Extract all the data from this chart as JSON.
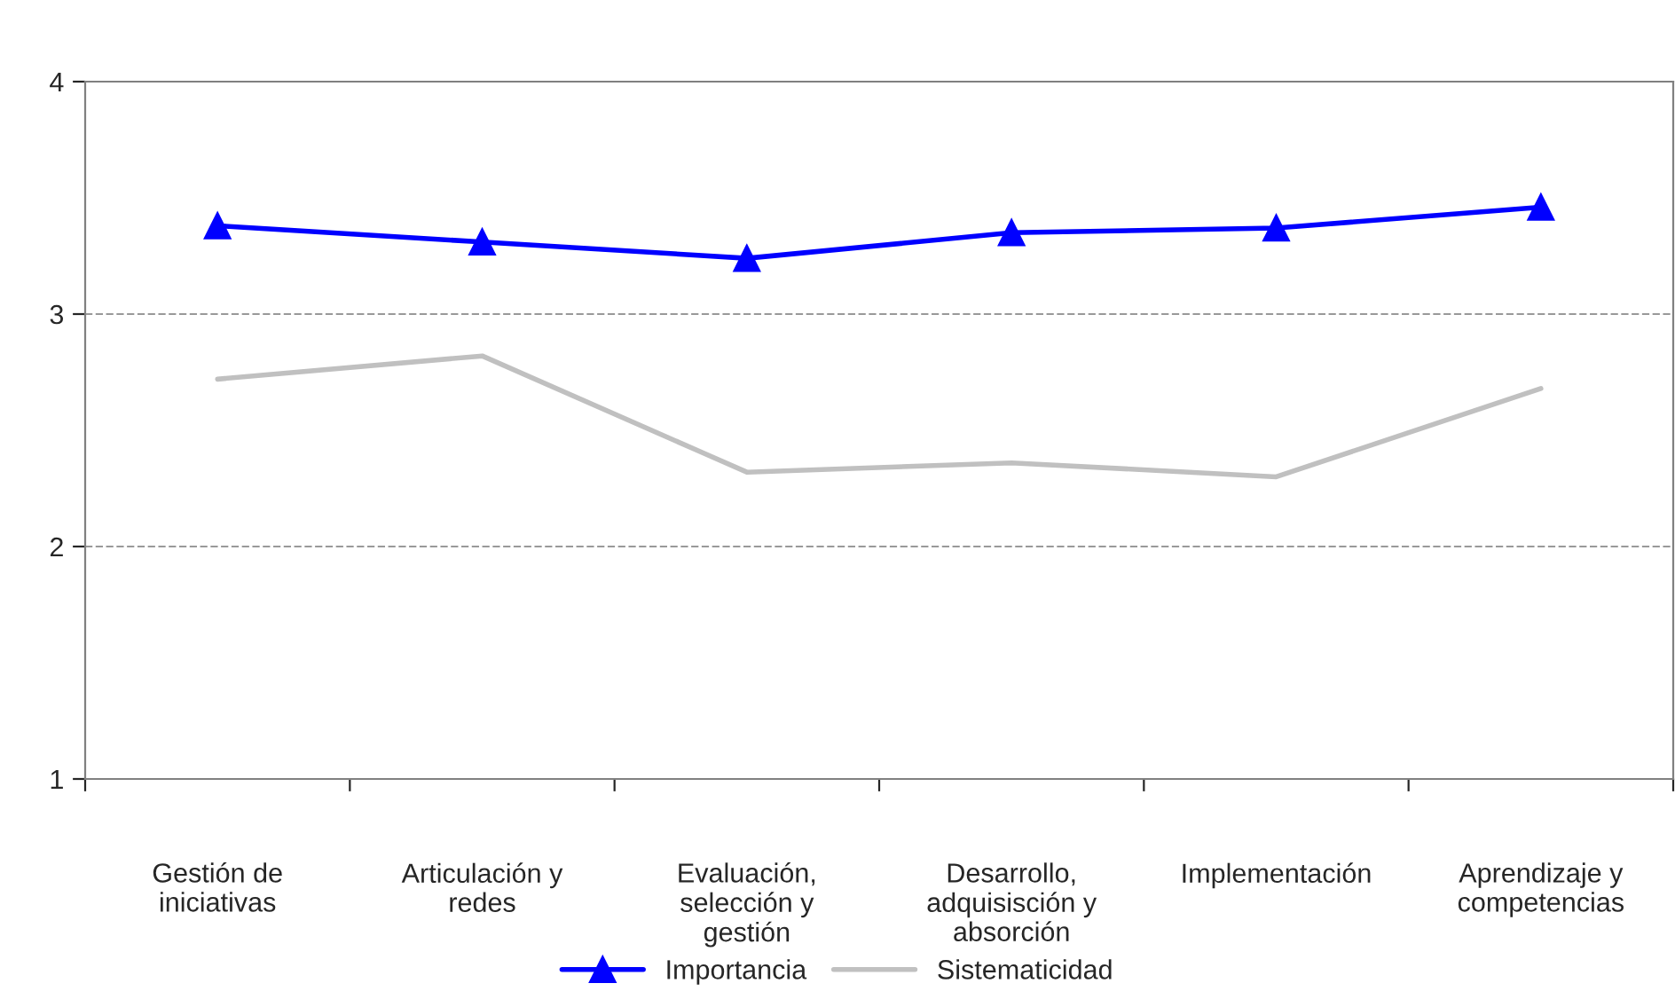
{
  "chart_data": {
    "type": "line",
    "categories": [
      "Gestión de\niniciativas",
      "Articulación y\nredes",
      "Evaluación,\nselección y\ngestión",
      "Desarrollo,\nadquisisción y\nabsorción",
      "Implementación",
      "Aprendizaje y\ncompetencias"
    ],
    "series": [
      {
        "name": "Importancia",
        "color": "#0000ff",
        "marker": "triangle",
        "values": [
          3.38,
          3.31,
          3.24,
          3.35,
          3.37,
          3.46
        ]
      },
      {
        "name": "Sistematicidad",
        "color": "#c0c0c0",
        "marker": "none",
        "values": [
          2.72,
          2.82,
          2.32,
          2.36,
          2.3,
          2.68
        ]
      }
    ],
    "ylim": [
      1,
      4
    ],
    "yticks": [
      1,
      2,
      3,
      4
    ],
    "grid": "y",
    "legend": "bottom",
    "line_style": "solid"
  }
}
